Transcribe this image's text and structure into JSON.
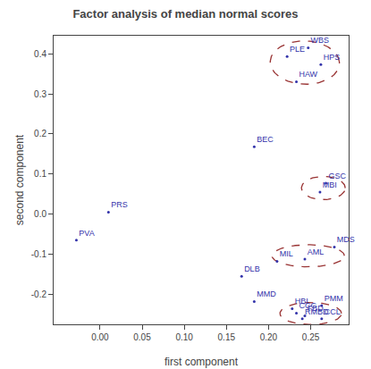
{
  "chart_data": {
    "type": "scatter",
    "title": "Factor analysis of median normal scores",
    "xlabel": "first component",
    "ylabel": "second component",
    "xlim": [
      -0.055,
      0.295
    ],
    "ylim": [
      -0.275,
      0.445
    ],
    "xticks": [
      {
        "value": 0.0,
        "label": "0.00"
      },
      0.05,
      {
        "value": 0.1,
        "label": "0.10"
      },
      0.15,
      {
        "value": 0.2,
        "label": "0.20"
      },
      0.25
    ],
    "yticks": [
      -0.2,
      -0.1,
      {
        "value": 0.0,
        "label": "0.0"
      },
      0.1,
      0.2,
      0.3,
      0.4
    ],
    "labels": [
      "WBS",
      "PLE",
      "HPS",
      "HAW",
      "BEC",
      "GSC",
      "MBI",
      "PRS",
      "PVA",
      "MDS",
      "AML",
      "MIL",
      "DLB",
      "MMD",
      "PMM",
      "HBI",
      "CCC",
      "FBD",
      "RMBD",
      "CCL"
    ],
    "x": [
      0.247,
      0.222,
      0.262,
      0.233,
      0.183,
      0.268,
      0.261,
      0.01,
      -0.028,
      0.278,
      0.243,
      0.21,
      0.168,
      0.183,
      0.263,
      0.228,
      0.233,
      0.243,
      0.24,
      0.263
    ],
    "values": [
      0.415,
      0.393,
      0.373,
      0.33,
      0.168,
      0.077,
      0.055,
      0.005,
      -0.065,
      -0.082,
      -0.112,
      -0.118,
      -0.155,
      -0.218,
      -0.228,
      -0.236,
      -0.247,
      -0.254,
      -0.261,
      -0.261
    ],
    "color": "#3333aa",
    "marker": "circle",
    "ellipses": {
      "color": "#993333",
      "line_style": "dash",
      "items": [
        {
          "cx": 0.243,
          "cy": 0.378,
          "width": 0.082,
          "height": 0.108,
          "angle": 3
        },
        {
          "cx": 0.265,
          "cy": 0.065,
          "width": 0.052,
          "height": 0.058,
          "angle": 0
        },
        {
          "cx": 0.247,
          "cy": -0.104,
          "width": 0.086,
          "height": 0.055,
          "angle": 0
        },
        {
          "cx": 0.25,
          "cy": -0.248,
          "width": 0.073,
          "height": 0.055,
          "angle": 0
        }
      ]
    },
    "grid": false
  }
}
